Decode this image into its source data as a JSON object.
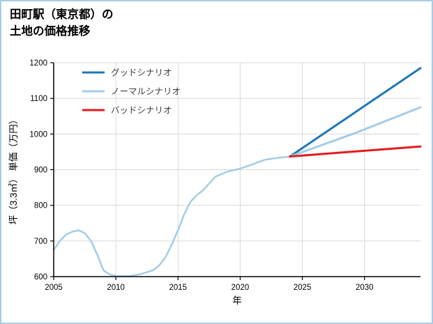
{
  "title_line1": "田町駅（東京都）の",
  "title_line2": "土地の価格推移",
  "colors": {
    "border": "#a6cde9",
    "grid": "#d8d8d8",
    "axis": "#000000",
    "tick_text": "#000000",
    "legend_text": "#3c3c3c",
    "good": "#1f77b4",
    "normal": "#a4cbe8",
    "bad": "#e41a1c"
  },
  "chart_data": {
    "type": "line",
    "title": "田町駅（東京都）の土地の価格推移",
    "xlabel": "年",
    "ylabel": "坪（3.3㎡） 単価（万円）",
    "xlim": [
      2005,
      2034.5
    ],
    "ylim": [
      600,
      1200
    ],
    "xticks": [
      2005,
      2010,
      2015,
      2020,
      2025,
      2030
    ],
    "yticks": [
      600,
      700,
      800,
      900,
      1000,
      1100,
      1200
    ],
    "grid": true,
    "legend_position": "top-left",
    "legend": [
      {
        "label": "グッドシナリオ",
        "color_key": "good"
      },
      {
        "label": "ノーマルシナリオ",
        "color_key": "normal"
      },
      {
        "label": "バッドシナリオ",
        "color_key": "bad"
      }
    ],
    "series": [
      {
        "key": "history",
        "color_key": "normal",
        "width": 2.5,
        "points": [
          [
            2005,
            675
          ],
          [
            2005.5,
            700
          ],
          [
            2006,
            718
          ],
          [
            2006.5,
            726
          ],
          [
            2007,
            730
          ],
          [
            2007.5,
            722
          ],
          [
            2008,
            700
          ],
          [
            2008.5,
            662
          ],
          [
            2009,
            618
          ],
          [
            2009.5,
            606
          ],
          [
            2010,
            602
          ],
          [
            2011,
            601
          ],
          [
            2012,
            607
          ],
          [
            2013,
            618
          ],
          [
            2013.5,
            632
          ],
          [
            2014,
            655
          ],
          [
            2014.5,
            690
          ],
          [
            2015,
            730
          ],
          [
            2015.5,
            775
          ],
          [
            2016,
            810
          ],
          [
            2016.5,
            828
          ],
          [
            2017,
            842
          ],
          [
            2018,
            880
          ],
          [
            2019,
            895
          ],
          [
            2020,
            903
          ],
          [
            2021,
            915
          ],
          [
            2022,
            928
          ],
          [
            2023,
            933
          ],
          [
            2024,
            937
          ]
        ]
      },
      {
        "key": "good",
        "color_key": "good",
        "width": 3,
        "points": [
          [
            2024,
            937
          ],
          [
            2034.5,
            1185
          ]
        ]
      },
      {
        "key": "normal",
        "color_key": "normal",
        "width": 3,
        "points": [
          [
            2024,
            937
          ],
          [
            2029.2,
            1002
          ],
          [
            2034.5,
            1075
          ]
        ]
      },
      {
        "key": "bad",
        "color_key": "bad",
        "width": 3,
        "points": [
          [
            2024,
            937
          ],
          [
            2034.5,
            965
          ]
        ]
      }
    ]
  }
}
